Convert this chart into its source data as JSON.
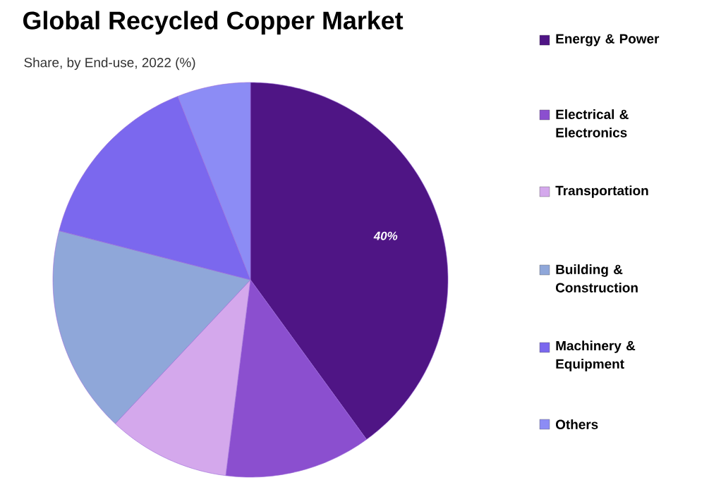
{
  "chart_data": {
    "type": "pie",
    "title": "Global Recycled Copper Market",
    "subtitle": "Share, by End-use, 2022 (%)",
    "categories": [
      "Energy & Power",
      "Electrical & Electronics",
      "Transportation",
      "Building & Construction",
      "Machinery & Equipment",
      "Others"
    ],
    "values": [
      40,
      12,
      10,
      17,
      15,
      6
    ],
    "colors": [
      "#4f1585",
      "#8b4fcf",
      "#d4a8ec",
      "#8fa7d9",
      "#7b68ee",
      "#8c8cf5"
    ],
    "value_labels": [
      "40%",
      null,
      null,
      null,
      null,
      null
    ],
    "legend": "right"
  }
}
